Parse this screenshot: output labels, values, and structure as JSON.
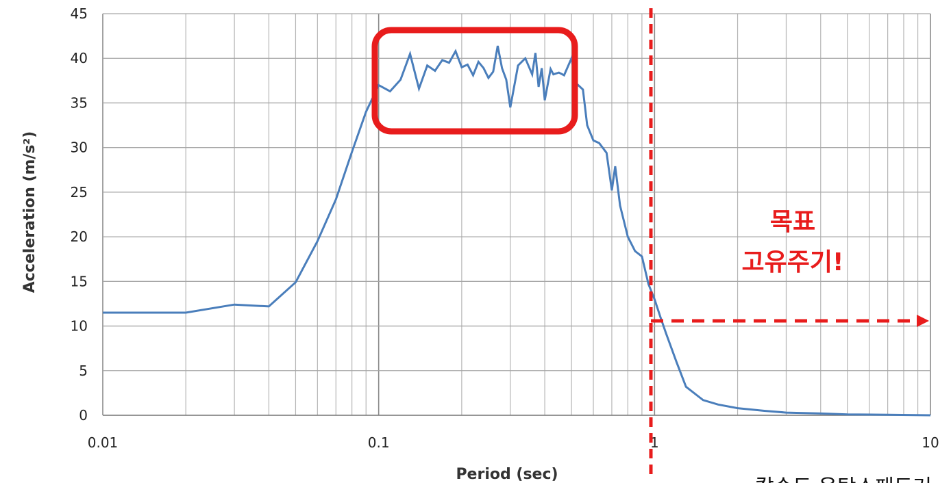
{
  "chart_data": {
    "type": "line",
    "title": "",
    "xlabel": "Period (sec)",
    "ylabel": "Acceleration (m/s²)",
    "xscale": "log",
    "xlim": [
      0.01,
      10
    ],
    "ylim": [
      0,
      45
    ],
    "x_ticks": [
      "0.01",
      "0.1",
      "1",
      "10"
    ],
    "y_ticks": [
      "0",
      "5",
      "10",
      "15",
      "20",
      "25",
      "30",
      "35",
      "40",
      "45"
    ],
    "grid": true,
    "colors": {
      "series": "#4a7ebb",
      "annotation": "#e81c1c"
    },
    "series": [
      {
        "x": [
          0.01,
          0.02,
          0.03,
          0.04,
          0.05,
          0.06,
          0.07,
          0.08,
          0.09,
          0.1,
          0.11,
          0.12,
          0.13,
          0.14,
          0.15,
          0.16,
          0.17,
          0.18,
          0.19,
          0.2,
          0.21,
          0.22,
          0.23,
          0.24,
          0.25,
          0.26,
          0.27,
          0.28,
          0.29,
          0.3,
          0.32,
          0.34,
          0.36,
          0.37,
          0.38,
          0.39,
          0.4,
          0.42,
          0.43,
          0.45,
          0.47,
          0.5,
          0.52,
          0.55,
          0.57,
          0.6,
          0.63,
          0.67,
          0.7,
          0.72,
          0.75,
          0.8,
          0.85,
          0.9,
          0.95,
          1.0,
          1.05,
          1.1,
          1.2,
          1.3,
          1.5,
          1.7,
          2.0,
          2.5,
          3.0,
          4.0,
          5.0,
          7.0,
          10.0
        ],
        "y": [
          11.5,
          11.5,
          12.4,
          12.2,
          14.9,
          19.5,
          24.2,
          29.5,
          34.0,
          37.0,
          36.3,
          37.6,
          40.5,
          36.6,
          39.2,
          38.6,
          39.8,
          39.5,
          40.8,
          39.0,
          39.3,
          38.1,
          39.6,
          38.9,
          37.8,
          38.5,
          41.4,
          38.9,
          37.6,
          34.5,
          39.2,
          40.0,
          38.2,
          40.6,
          36.8,
          38.9,
          35.3,
          38.8,
          38.2,
          38.4,
          38.1,
          40.0,
          37.2,
          36.5,
          32.5,
          30.8,
          30.5,
          29.4,
          25.2,
          27.9,
          23.5,
          20.0,
          18.4,
          17.8,
          14.7,
          13.0,
          11.0,
          9.2,
          6.0,
          3.2,
          1.7,
          1.2,
          0.8,
          0.5,
          0.3,
          0.2,
          0.1,
          0.05,
          0.0
        ]
      }
    ],
    "annotations": {
      "target_label_line1": "목표",
      "target_label_line2": "고유주기!",
      "footnote": "칼슨도 운탁소패도거"
    }
  }
}
